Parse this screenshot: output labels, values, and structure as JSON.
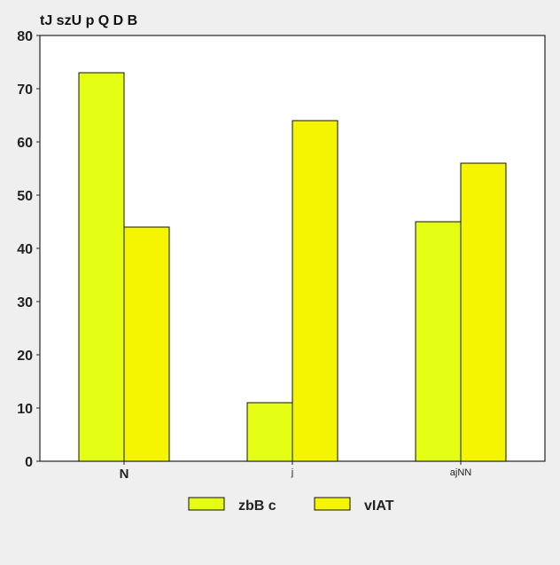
{
  "chart_data": {
    "type": "bar",
    "title": "tJ szU p Q D B",
    "xlabel": "",
    "ylabel": "",
    "categories": [
      "N",
      "j",
      "ajNN"
    ],
    "series": [
      {
        "name": "zbB c",
        "values": [
          73,
          11,
          45
        ],
        "color": "#e4ff14"
      },
      {
        "name": "vIAT",
        "values": [
          44,
          64,
          56
        ],
        "color": "#f5f500"
      }
    ],
    "ylim": [
      0,
      80
    ],
    "yticks": [
      0,
      10,
      20,
      30,
      40,
      50,
      60,
      70,
      80
    ],
    "grid": false,
    "legend_position": "bottom"
  },
  "colors": {
    "background": "#efefef",
    "plot_background": "#ffffff",
    "axis": "#222222",
    "bar_stroke": "#111111"
  }
}
